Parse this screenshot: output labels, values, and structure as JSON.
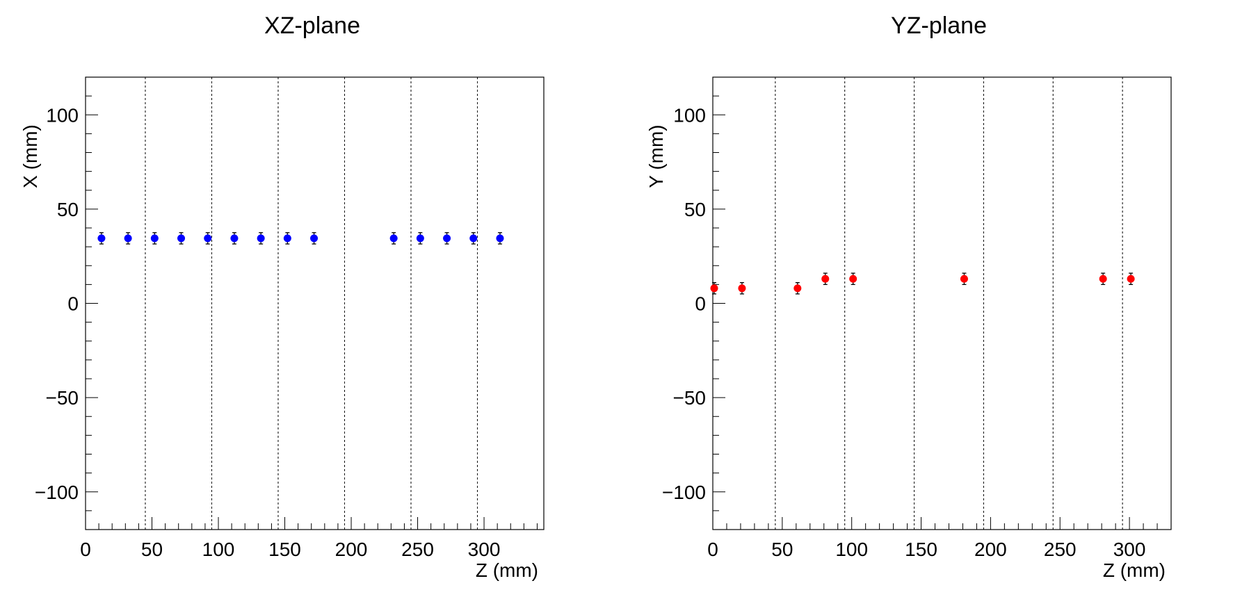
{
  "chart_data": [
    {
      "type": "scatter",
      "title": "XZ-plane",
      "xlabel": "Z (mm)",
      "ylabel": "X (mm)",
      "xlim": [
        0,
        345
      ],
      "ylim": [
        -120,
        120
      ],
      "xticks": [
        0,
        50,
        100,
        150,
        200,
        250,
        300
      ],
      "yticks": [
        -100,
        -50,
        0,
        50,
        100
      ],
      "grid_x": [
        45,
        95,
        145,
        195,
        245,
        295
      ],
      "marker_color": "#0000ff",
      "series": [
        {
          "points": [
            {
              "x": 12,
              "y": 34.5,
              "err": 3
            },
            {
              "x": 32,
              "y": 34.5,
              "err": 3
            },
            {
              "x": 52,
              "y": 34.5,
              "err": 3
            },
            {
              "x": 72,
              "y": 34.5,
              "err": 3
            },
            {
              "x": 92,
              "y": 34.5,
              "err": 3
            },
            {
              "x": 112,
              "y": 34.5,
              "err": 3
            },
            {
              "x": 132,
              "y": 34.5,
              "err": 3
            },
            {
              "x": 152,
              "y": 34.5,
              "err": 3
            },
            {
              "x": 172,
              "y": 34.5,
              "err": 3
            },
            {
              "x": 232,
              "y": 34.5,
              "err": 3
            },
            {
              "x": 252,
              "y": 34.5,
              "err": 3
            },
            {
              "x": 272,
              "y": 34.5,
              "err": 3
            },
            {
              "x": 292,
              "y": 34.5,
              "err": 3
            },
            {
              "x": 312,
              "y": 34.5,
              "err": 3
            }
          ]
        }
      ]
    },
    {
      "type": "scatter",
      "title": "YZ-plane",
      "xlabel": "Z (mm)",
      "ylabel": "Y (mm)",
      "xlim": [
        0,
        330
      ],
      "ylim": [
        -120,
        120
      ],
      "xticks": [
        0,
        50,
        100,
        150,
        200,
        250,
        300
      ],
      "yticks": [
        -100,
        -50,
        0,
        50,
        100
      ],
      "grid_x": [
        45,
        95,
        145,
        195,
        245,
        295
      ],
      "marker_color": "#ff0000",
      "series": [
        {
          "points": [
            {
              "x": 1,
              "y": 8,
              "err": 3
            },
            {
              "x": 21,
              "y": 8,
              "err": 3
            },
            {
              "x": 61,
              "y": 8,
              "err": 3
            },
            {
              "x": 81,
              "y": 13,
              "err": 3
            },
            {
              "x": 101,
              "y": 13,
              "err": 3
            },
            {
              "x": 181,
              "y": 13,
              "err": 3
            },
            {
              "x": 281,
              "y": 13,
              "err": 3
            },
            {
              "x": 301,
              "y": 13,
              "err": 3
            }
          ]
        }
      ]
    }
  ]
}
